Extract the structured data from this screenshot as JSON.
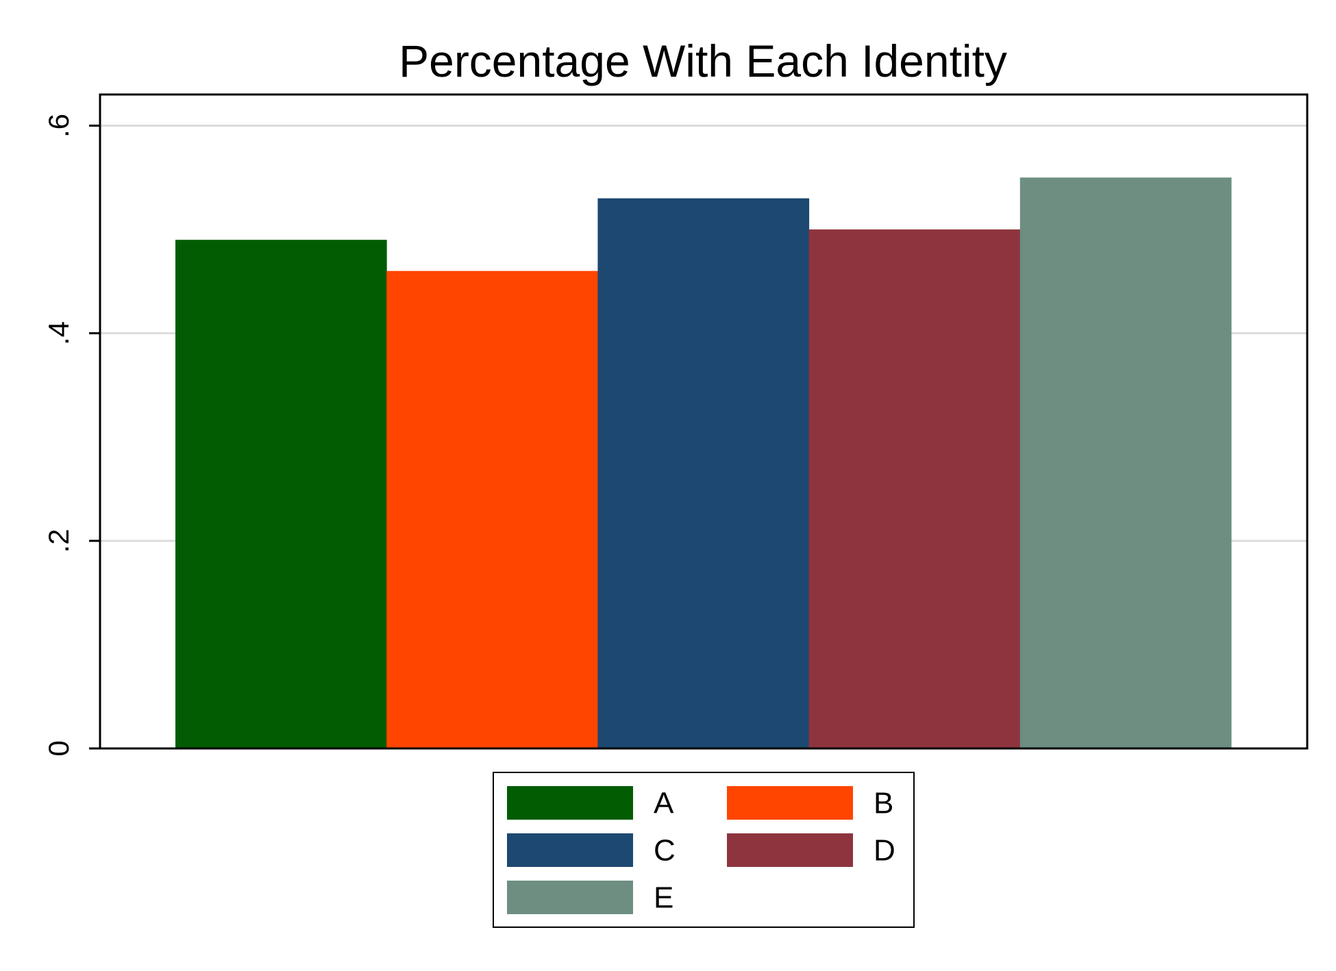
{
  "chart_data": {
    "type": "bar",
    "title": "Percentage With Each Identity",
    "xlabel": "",
    "ylabel": "",
    "ylim": [
      0,
      0.63
    ],
    "yticks": [
      {
        "value": 0,
        "label": "0"
      },
      {
        "value": 0.2,
        "label": ".2"
      },
      {
        "value": 0.4,
        "label": ".4"
      },
      {
        "value": 0.6,
        "label": ".6"
      }
    ],
    "grid": true,
    "legend_position": "bottom",
    "series": [
      {
        "name": "A",
        "value": 0.49,
        "color": "#025C02"
      },
      {
        "name": "B",
        "value": 0.46,
        "color": "#FF4500"
      },
      {
        "name": "C",
        "value": 0.53,
        "color": "#1C4871"
      },
      {
        "name": "D",
        "value": 0.5,
        "color": "#8E343E"
      },
      {
        "name": "E",
        "value": 0.55,
        "color": "#6D8E81"
      }
    ]
  }
}
